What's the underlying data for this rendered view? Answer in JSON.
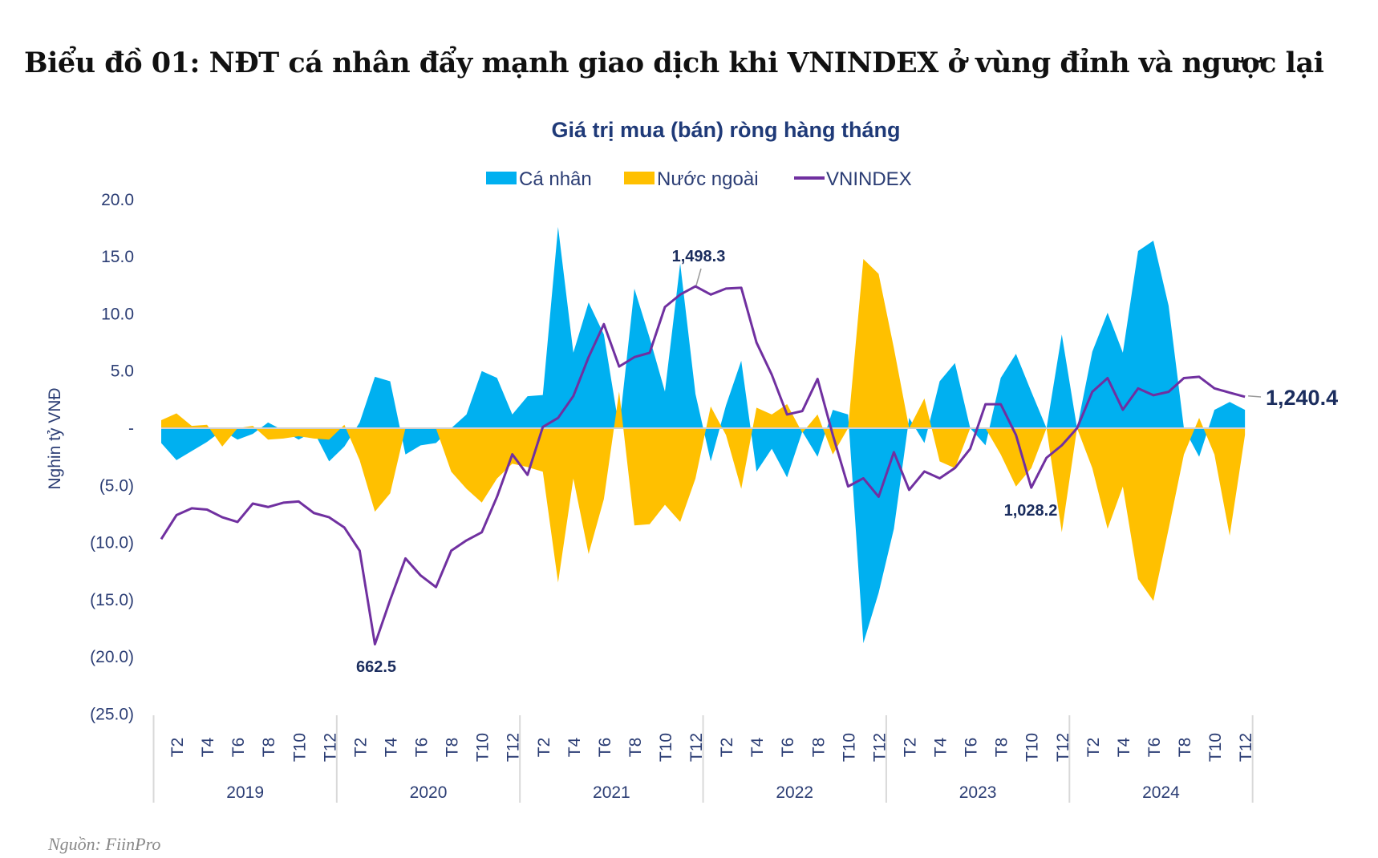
{
  "header": {
    "title": "Biểu đồ 01: NĐT cá nhân đẩy mạnh giao dịch khi VNINDEX ở vùng đỉnh và ngược lại",
    "source": "Nguồn: FiinPro"
  },
  "colors": {
    "ca_nhan": "#00b0f0",
    "nuoc_ngoai": "#ffc000",
    "vnindex": "#7030a0",
    "text": "#2b3d74"
  },
  "chart_data": {
    "type": "area",
    "title": "Giá trị mua (bán) ròng hàng tháng",
    "ylabel": "Nghin tỷ VNĐ",
    "ylim": [
      -25,
      20
    ],
    "y_ticks": [
      {
        "value": 20,
        "label": "20.0"
      },
      {
        "value": 15,
        "label": "15.0"
      },
      {
        "value": 10,
        "label": "10.0"
      },
      {
        "value": 5,
        "label": "5.0"
      },
      {
        "value": 0,
        "label": "-"
      },
      {
        "value": -5,
        "label": "(5.0)"
      },
      {
        "value": -10,
        "label": "(10.0)"
      },
      {
        "value": -15,
        "label": "(15.0)"
      },
      {
        "value": -20,
        "label": "(20.0)"
      },
      {
        "value": -25,
        "label": "(25.0)"
      }
    ],
    "years": [
      "2019",
      "2020",
      "2021",
      "2022",
      "2023",
      "2024"
    ],
    "month_labels": [
      "T2",
      "T4",
      "T6",
      "T8",
      "T10",
      "T12"
    ],
    "legend": [
      "Cá nhân",
      "Nước ngoài",
      "VNINDEX"
    ],
    "legend_position": "top",
    "grid": false,
    "series": [
      {
        "name": "Cá nhân",
        "type": "area",
        "values": [
          -1.3,
          -2.8,
          -2.0,
          -1.2,
          -0.2,
          -1.0,
          -0.5,
          0.5,
          -0.2,
          -1.0,
          -0.3,
          -2.9,
          -1.6,
          0.5,
          4.5,
          4.1,
          -2.3,
          -1.5,
          -1.3,
          0.0,
          1.2,
          5.0,
          4.4,
          1.2,
          2.8,
          2.9,
          17.6,
          6.6,
          11.0,
          8.2,
          0.0,
          12.2,
          7.9,
          3.2,
          14.4,
          3.0,
          -2.9,
          2.0,
          5.9,
          -3.8,
          -1.8,
          -4.3,
          -0.3,
          -2.5,
          1.6,
          1.2,
          -18.8,
          -14.4,
          -8.8,
          0.9,
          -1.3,
          4.1,
          5.7,
          0.0,
          -1.5,
          4.4,
          6.5,
          3.2,
          0.0,
          8.2,
          0.0,
          6.7,
          10.1,
          6.6,
          15.5,
          16.4,
          10.7,
          0.0,
          -2.5,
          1.6,
          2.3,
          1.6
        ]
      },
      {
        "name": "Nước ngoài",
        "type": "area",
        "values": [
          0.7,
          1.3,
          0.2,
          0.3,
          -1.6,
          0.0,
          0.2,
          -1.0,
          -0.9,
          -0.7,
          -0.9,
          -1.0,
          0.3,
          -2.8,
          -7.3,
          -5.7,
          0.0,
          0.0,
          0.0,
          -3.8,
          -5.3,
          -6.5,
          -4.4,
          -3.1,
          -3.4,
          -3.8,
          -13.5,
          -4.4,
          -11.0,
          -6.2,
          3.2,
          -8.5,
          -8.4,
          -6.7,
          -8.2,
          -4.4,
          1.9,
          -0.6,
          -5.3,
          1.8,
          1.2,
          2.1,
          -0.4,
          1.2,
          -2.3,
          0.0,
          14.8,
          13.5,
          7.0,
          0.0,
          2.6,
          -2.9,
          -3.5,
          0.0,
          0.0,
          -2.3,
          -5.1,
          -3.5,
          0.0,
          -9.1,
          0.0,
          -3.5,
          -8.8,
          -5.1,
          -13.2,
          -15.1,
          -8.8,
          -2.3,
          0.9,
          -2.3,
          -9.4,
          -0.6
        ]
      },
      {
        "name": "VNINDEX",
        "type": "line",
        "axis": "secondary",
        "values": [
          908,
          964,
          980,
          977,
          959,
          948,
          991,
          983,
          993,
          996,
          969,
          959,
          935,
          881,
          662.5,
          766,
          863,
          823,
          796,
          881,
          905,
          924,
          1007,
          1106,
          1058,
          1170,
          1191,
          1242,
          1333,
          1410,
          1311,
          1333,
          1343,
          1450,
          1479,
          1498.3,
          1479,
          1493,
          1495,
          1367,
          1292,
          1199,
          1207,
          1282,
          1151,
          1031,
          1050,
          1007,
          1111,
          1023,
          1066,
          1050,
          1074,
          1119,
          1223,
          1223,
          1151,
          1028.2,
          1098,
          1127,
          1167,
          1252,
          1284,
          1210,
          1260,
          1244,
          1252,
          1284,
          1287,
          1260,
          1250,
          1240.4
        ]
      }
    ],
    "annotations": [
      {
        "label": "662.5",
        "index": 14
      },
      {
        "label": "1,498.3",
        "index": 35
      },
      {
        "label": "1,028.2",
        "index": 57
      },
      {
        "label": "1,240.4",
        "index": 71
      }
    ]
  }
}
